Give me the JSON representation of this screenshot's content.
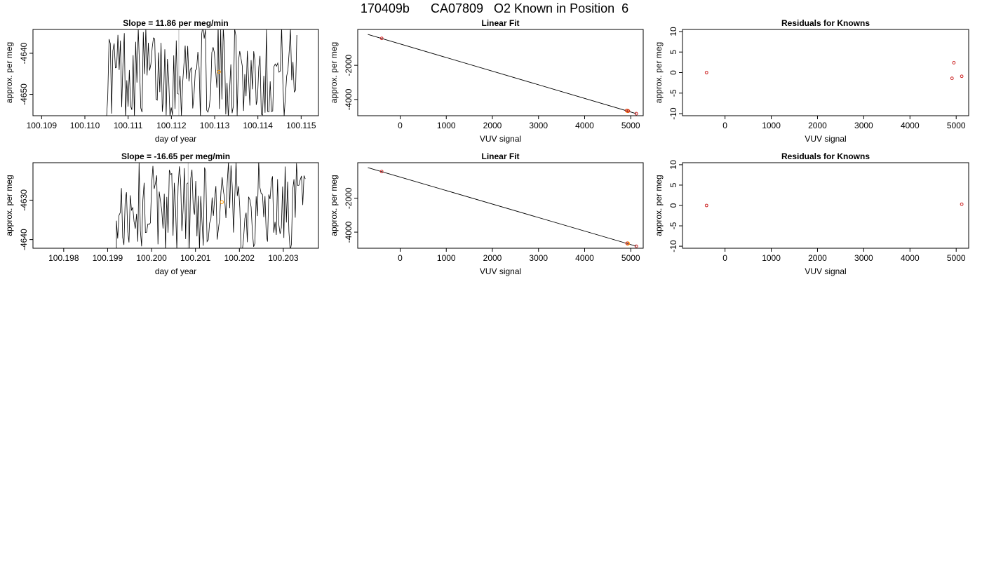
{
  "figure": {
    "title": "170409b      CA07809   O2 Known in Position  6",
    "colors": {
      "frame": "#000000",
      "trace": "#000000",
      "gray_trace": "#bbbbbb",
      "known": "#cc2222",
      "orange": "#ff9900"
    }
  },
  "chart_data": [
    {
      "type": "line",
      "title": "Slope =  11.86  per meg/min",
      "xlabel": "day of year",
      "ylabel": "approx. per meg",
      "xlim": [
        100.1088,
        100.1154
      ],
      "ylim": [
        -4655.2,
        -4634.2
      ],
      "xticks": [
        100.109,
        100.11,
        100.111,
        100.112,
        100.113,
        100.114,
        100.115
      ],
      "xtick_labels": [
        "100.109",
        "100.110",
        "100.111",
        "100.112",
        "100.113",
        "100.114",
        "100.115"
      ],
      "yticks": [
        -4650,
        -4640
      ],
      "ytick_labels": [
        "-4650",
        "-4640"
      ],
      "trace_x_range": [
        100.1105,
        100.1149
      ],
      "trace_y_range": [
        -4656,
        -4633
      ],
      "point": {
        "x": 100.1131,
        "y": -4644.5
      },
      "grid": false
    },
    {
      "type": "scatter",
      "title": "Linear Fit",
      "xlabel": "VUV signal",
      "ylabel": "approx. per meg",
      "xlim": [
        -920,
        5270
      ],
      "ylim": [
        -4950,
        100
      ],
      "xticks": [
        0,
        1000,
        2000,
        3000,
        4000,
        5000
      ],
      "xtick_labels": [
        "0",
        "1000",
        "2000",
        "3000",
        "4000",
        "5000"
      ],
      "yticks": [
        -4000,
        -2000
      ],
      "ytick_labels": [
        "-4000",
        "-2000"
      ],
      "fit_line": {
        "x": [
          -700,
          5120
        ],
        "y": [
          -190,
          -4830
        ]
      },
      "known_points": [
        {
          "x": -400,
          "y": -420
        },
        {
          "x": 4910,
          "y": -4650
        },
        {
          "x": 4950,
          "y": -4680
        },
        {
          "x": 5120,
          "y": -4830
        }
      ],
      "orange_points": [
        {
          "x": 4930,
          "y": -4668
        }
      ],
      "grid": false
    },
    {
      "type": "scatter",
      "title": "Residuals for Knowns",
      "xlabel": "VUV signal",
      "ylabel": "approx. per meg",
      "xlim": [
        -920,
        5270
      ],
      "ylim": [
        -10.5,
        10.5
      ],
      "xticks": [
        0,
        1000,
        2000,
        3000,
        4000,
        5000
      ],
      "xtick_labels": [
        "0",
        "1000",
        "2000",
        "3000",
        "4000",
        "5000"
      ],
      "yticks": [
        -10,
        -5,
        0,
        5,
        10
      ],
      "ytick_labels": [
        "-10",
        "-5",
        "0",
        "5",
        "10"
      ],
      "points": [
        {
          "x": -400,
          "y": 0
        },
        {
          "x": 4910,
          "y": -1.4
        },
        {
          "x": 4950,
          "y": 2.4
        },
        {
          "x": 5120,
          "y": -0.9
        }
      ],
      "grid": false
    },
    {
      "type": "line",
      "title": "Slope =  -16.65  per meg/min",
      "xlabel": "day of year",
      "ylabel": "approx. per meg",
      "xlim": [
        100.1973,
        100.2038
      ],
      "ylim": [
        -4642.2,
        -4620.5
      ],
      "xticks": [
        100.198,
        100.199,
        100.2,
        100.201,
        100.202,
        100.203
      ],
      "xtick_labels": [
        "100.198",
        "100.199",
        "100.200",
        "100.201",
        "100.202",
        "100.203"
      ],
      "yticks": [
        -4640,
        -4630
      ],
      "ytick_labels": [
        "-4640",
        "-4630"
      ],
      "trace_x_range": [
        100.1992,
        100.2035
      ],
      "trace_y_range": [
        -4643,
        -4620
      ],
      "point": {
        "x": 100.2016,
        "y": -4630.5
      },
      "grid": false
    },
    {
      "type": "scatter",
      "title": "Linear Fit",
      "xlabel": "VUV signal",
      "ylabel": "approx. per meg",
      "xlim": [
        -920,
        5270
      ],
      "ylim": [
        -4950,
        100
      ],
      "xticks": [
        0,
        1000,
        2000,
        3000,
        4000,
        5000
      ],
      "xtick_labels": [
        "0",
        "1000",
        "2000",
        "3000",
        "4000",
        "5000"
      ],
      "yticks": [
        -4000,
        -2000
      ],
      "ytick_labels": [
        "-4000",
        "-2000"
      ],
      "fit_line": {
        "x": [
          -700,
          5120
        ],
        "y": [
          -190,
          -4830
        ]
      },
      "known_points": [
        {
          "x": -400,
          "y": -420
        },
        {
          "x": 4920,
          "y": -4660
        },
        {
          "x": 5120,
          "y": -4830
        }
      ],
      "orange_points": [
        {
          "x": 4935,
          "y": -4672
        }
      ],
      "grid": false
    },
    {
      "type": "scatter",
      "title": "Residuals for Knowns",
      "xlabel": "VUV signal",
      "ylabel": "approx. per meg",
      "xlim": [
        -920,
        5270
      ],
      "ylim": [
        -10.5,
        10.5
      ],
      "xticks": [
        0,
        1000,
        2000,
        3000,
        4000,
        5000
      ],
      "xtick_labels": [
        "0",
        "1000",
        "2000",
        "3000",
        "4000",
        "5000"
      ],
      "yticks": [
        -10,
        -5,
        0,
        5,
        10
      ],
      "ytick_labels": [
        "-10",
        "-5",
        "0",
        "5",
        "10"
      ],
      "points": [
        {
          "x": -400,
          "y": 0
        },
        {
          "x": 5120,
          "y": 0.3
        }
      ],
      "grid": false
    }
  ]
}
